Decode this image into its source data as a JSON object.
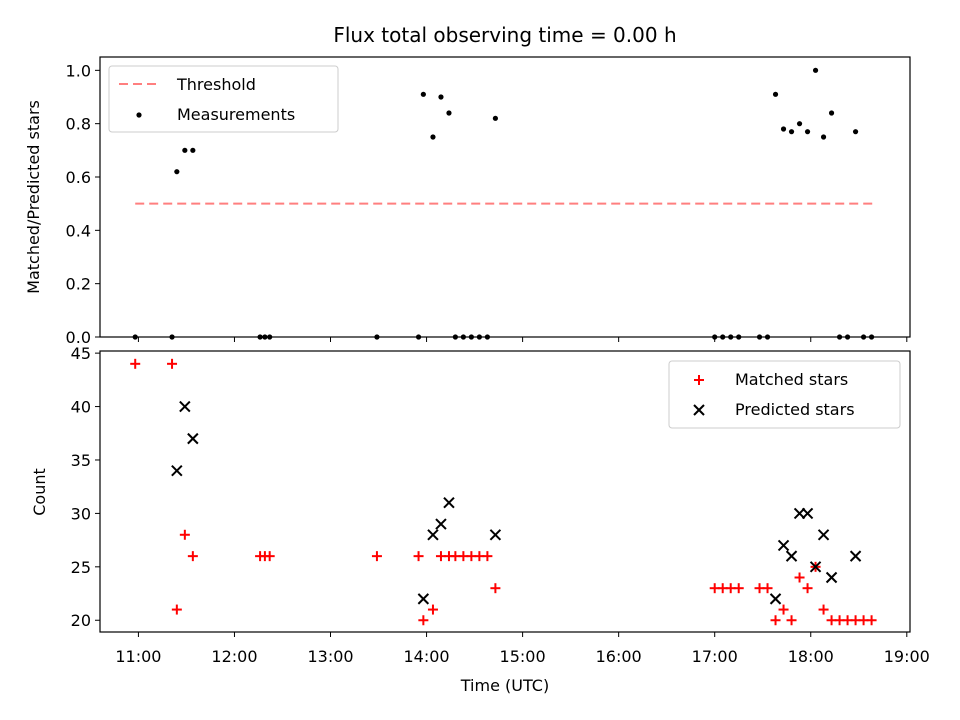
{
  "chart_data": [
    {
      "type": "scatter",
      "title": "Flux total observing time = 0.00 h",
      "xlabel": "",
      "ylabel": "Matched/Predicted stars",
      "xlim": [
        "10:36",
        "19:02"
      ],
      "ylim": [
        0,
        1.05
      ],
      "yticks": [
        "0.0",
        "0.2",
        "0.4",
        "0.6",
        "0.8",
        "1.0"
      ],
      "xticks": [
        "11:00",
        "12:00",
        "13:00",
        "14:00",
        "15:00",
        "16:00",
        "17:00",
        "18:00",
        "19:00"
      ],
      "grid": false,
      "legend": {
        "placement": "top-left",
        "entries": [
          {
            "label": "Threshold",
            "marker": "dashed-line",
            "color": "#ff7f7f"
          },
          {
            "label": "Measurements",
            "marker": "dot",
            "color": "#000000"
          }
        ]
      },
      "series": [
        {
          "name": "Threshold",
          "style": "dashed-line",
          "color": "#ff7f7f",
          "points": [
            [
              "10:58",
              0.5
            ],
            [
              "18:40",
              0.5
            ]
          ]
        },
        {
          "name": "Measurements",
          "style": "dot",
          "color": "#000000",
          "points": [
            [
              "10:58",
              0
            ],
            [
              "11:21",
              0
            ],
            [
              "11:24",
              0.62
            ],
            [
              "11:29",
              0.7
            ],
            [
              "11:34",
              0.7
            ],
            [
              "12:16",
              0
            ],
            [
              "12:19",
              0
            ],
            [
              "12:22",
              0
            ],
            [
              "13:29",
              0
            ],
            [
              "13:55",
              0
            ],
            [
              "13:58",
              0.91
            ],
            [
              "14:04",
              0.75
            ],
            [
              "14:09",
              0.9
            ],
            [
              "14:14",
              0.84
            ],
            [
              "14:18",
              0
            ],
            [
              "14:23",
              0
            ],
            [
              "14:28",
              0
            ],
            [
              "14:33",
              0
            ],
            [
              "14:38",
              0
            ],
            [
              "14:43",
              0.82
            ],
            [
              "17:00",
              0
            ],
            [
              "17:05",
              0
            ],
            [
              "17:10",
              0
            ],
            [
              "17:15",
              0
            ],
            [
              "17:28",
              0
            ],
            [
              "17:33",
              0
            ],
            [
              "17:38",
              0.91
            ],
            [
              "17:43",
              0.78
            ],
            [
              "17:48",
              0.77
            ],
            [
              "17:53",
              0.8
            ],
            [
              "17:58",
              0.77
            ],
            [
              "18:03",
              1.0
            ],
            [
              "18:08",
              0.75
            ],
            [
              "18:13",
              0.84
            ],
            [
              "18:18",
              0
            ],
            [
              "18:23",
              0
            ],
            [
              "18:28",
              0.77
            ],
            [
              "18:33",
              0
            ],
            [
              "18:38",
              0
            ]
          ]
        }
      ]
    },
    {
      "type": "scatter",
      "title": "",
      "xlabel": "Time (UTC)",
      "ylabel": "Count",
      "xlim": [
        "10:36",
        "19:02"
      ],
      "ylim": [
        18.9,
        45.2
      ],
      "yticks": [
        "20",
        "25",
        "30",
        "35",
        "40",
        "45"
      ],
      "xticks": [
        "11:00",
        "12:00",
        "13:00",
        "14:00",
        "15:00",
        "16:00",
        "17:00",
        "18:00",
        "19:00"
      ],
      "grid": false,
      "legend": {
        "placement": "top-right",
        "entries": [
          {
            "label": "Matched stars",
            "marker": "plus",
            "color": "#ff0000"
          },
          {
            "label": "Predicted stars",
            "marker": "x",
            "color": "#000000"
          }
        ]
      },
      "series": [
        {
          "name": "Matched stars",
          "style": "plus",
          "color": "#ff0000",
          "points": [
            [
              "10:58",
              44
            ],
            [
              "11:21",
              44
            ],
            [
              "11:24",
              21
            ],
            [
              "11:29",
              28
            ],
            [
              "11:34",
              26
            ],
            [
              "12:16",
              26
            ],
            [
              "12:19",
              26
            ],
            [
              "12:22",
              26
            ],
            [
              "13:29",
              26
            ],
            [
              "13:55",
              26
            ],
            [
              "13:58",
              20
            ],
            [
              "14:04",
              21
            ],
            [
              "14:09",
              26
            ],
            [
              "14:14",
              26
            ],
            [
              "14:18",
              26
            ],
            [
              "14:23",
              26
            ],
            [
              "14:28",
              26
            ],
            [
              "14:33",
              26
            ],
            [
              "14:38",
              26
            ],
            [
              "14:43",
              23
            ],
            [
              "17:00",
              23
            ],
            [
              "17:05",
              23
            ],
            [
              "17:10",
              23
            ],
            [
              "17:15",
              23
            ],
            [
              "17:28",
              23
            ],
            [
              "17:33",
              23
            ],
            [
              "17:38",
              20
            ],
            [
              "17:43",
              21
            ],
            [
              "17:48",
              20
            ],
            [
              "17:53",
              24
            ],
            [
              "17:58",
              23
            ],
            [
              "18:03",
              25
            ],
            [
              "18:08",
              21
            ],
            [
              "18:13",
              20
            ],
            [
              "18:18",
              20
            ],
            [
              "18:23",
              20
            ],
            [
              "18:28",
              20
            ],
            [
              "18:33",
              20
            ],
            [
              "18:38",
              20
            ]
          ]
        },
        {
          "name": "Predicted stars",
          "style": "x",
          "color": "#000000",
          "points": [
            [
              "11:24",
              34
            ],
            [
              "11:29",
              40
            ],
            [
              "11:34",
              37
            ],
            [
              "13:58",
              22
            ],
            [
              "14:04",
              28
            ],
            [
              "14:09",
              29
            ],
            [
              "14:14",
              31
            ],
            [
              "14:43",
              28
            ],
            [
              "17:38",
              22
            ],
            [
              "17:43",
              27
            ],
            [
              "17:48",
              26
            ],
            [
              "17:53",
              30
            ],
            [
              "17:58",
              30
            ],
            [
              "18:03",
              25
            ],
            [
              "18:08",
              28
            ],
            [
              "18:13",
              24
            ],
            [
              "18:28",
              26
            ]
          ]
        }
      ]
    }
  ]
}
